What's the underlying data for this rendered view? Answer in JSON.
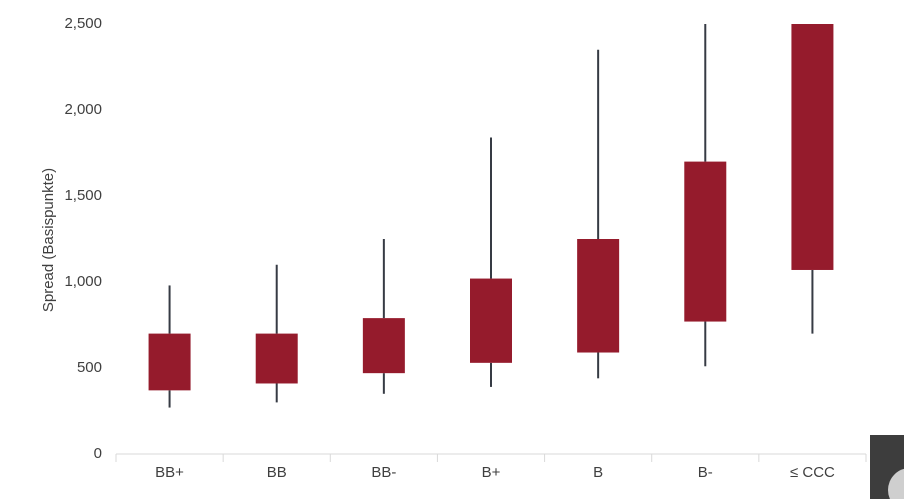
{
  "chart_data": {
    "type": "box",
    "y_label": "Spread (Basispunkte)",
    "categories": [
      "BB+",
      "BB",
      "BB-",
      "B+",
      "B",
      "B-",
      "≤ CCC"
    ],
    "low": [
      270,
      300,
      350,
      390,
      440,
      510,
      700
    ],
    "q1": [
      370,
      410,
      470,
      530,
      590,
      770,
      1070
    ],
    "q3": [
      700,
      700,
      790,
      1020,
      1250,
      1700,
      2500
    ],
    "high": [
      980,
      1100,
      1250,
      1840,
      2350,
      2500,
      2500
    ],
    "color": "#951b2c",
    "whisker_color": "#363b44",
    "ylim": [
      0,
      2500
    ],
    "yticks": [
      0,
      500,
      {
        "value": 1000,
        "label": "1,000"
      },
      {
        "value": 1500,
        "label": "1,500"
      },
      {
        "value": 2000,
        "label": "2,000"
      },
      {
        "value": 2500,
        "label": "2,500"
      }
    ]
  }
}
